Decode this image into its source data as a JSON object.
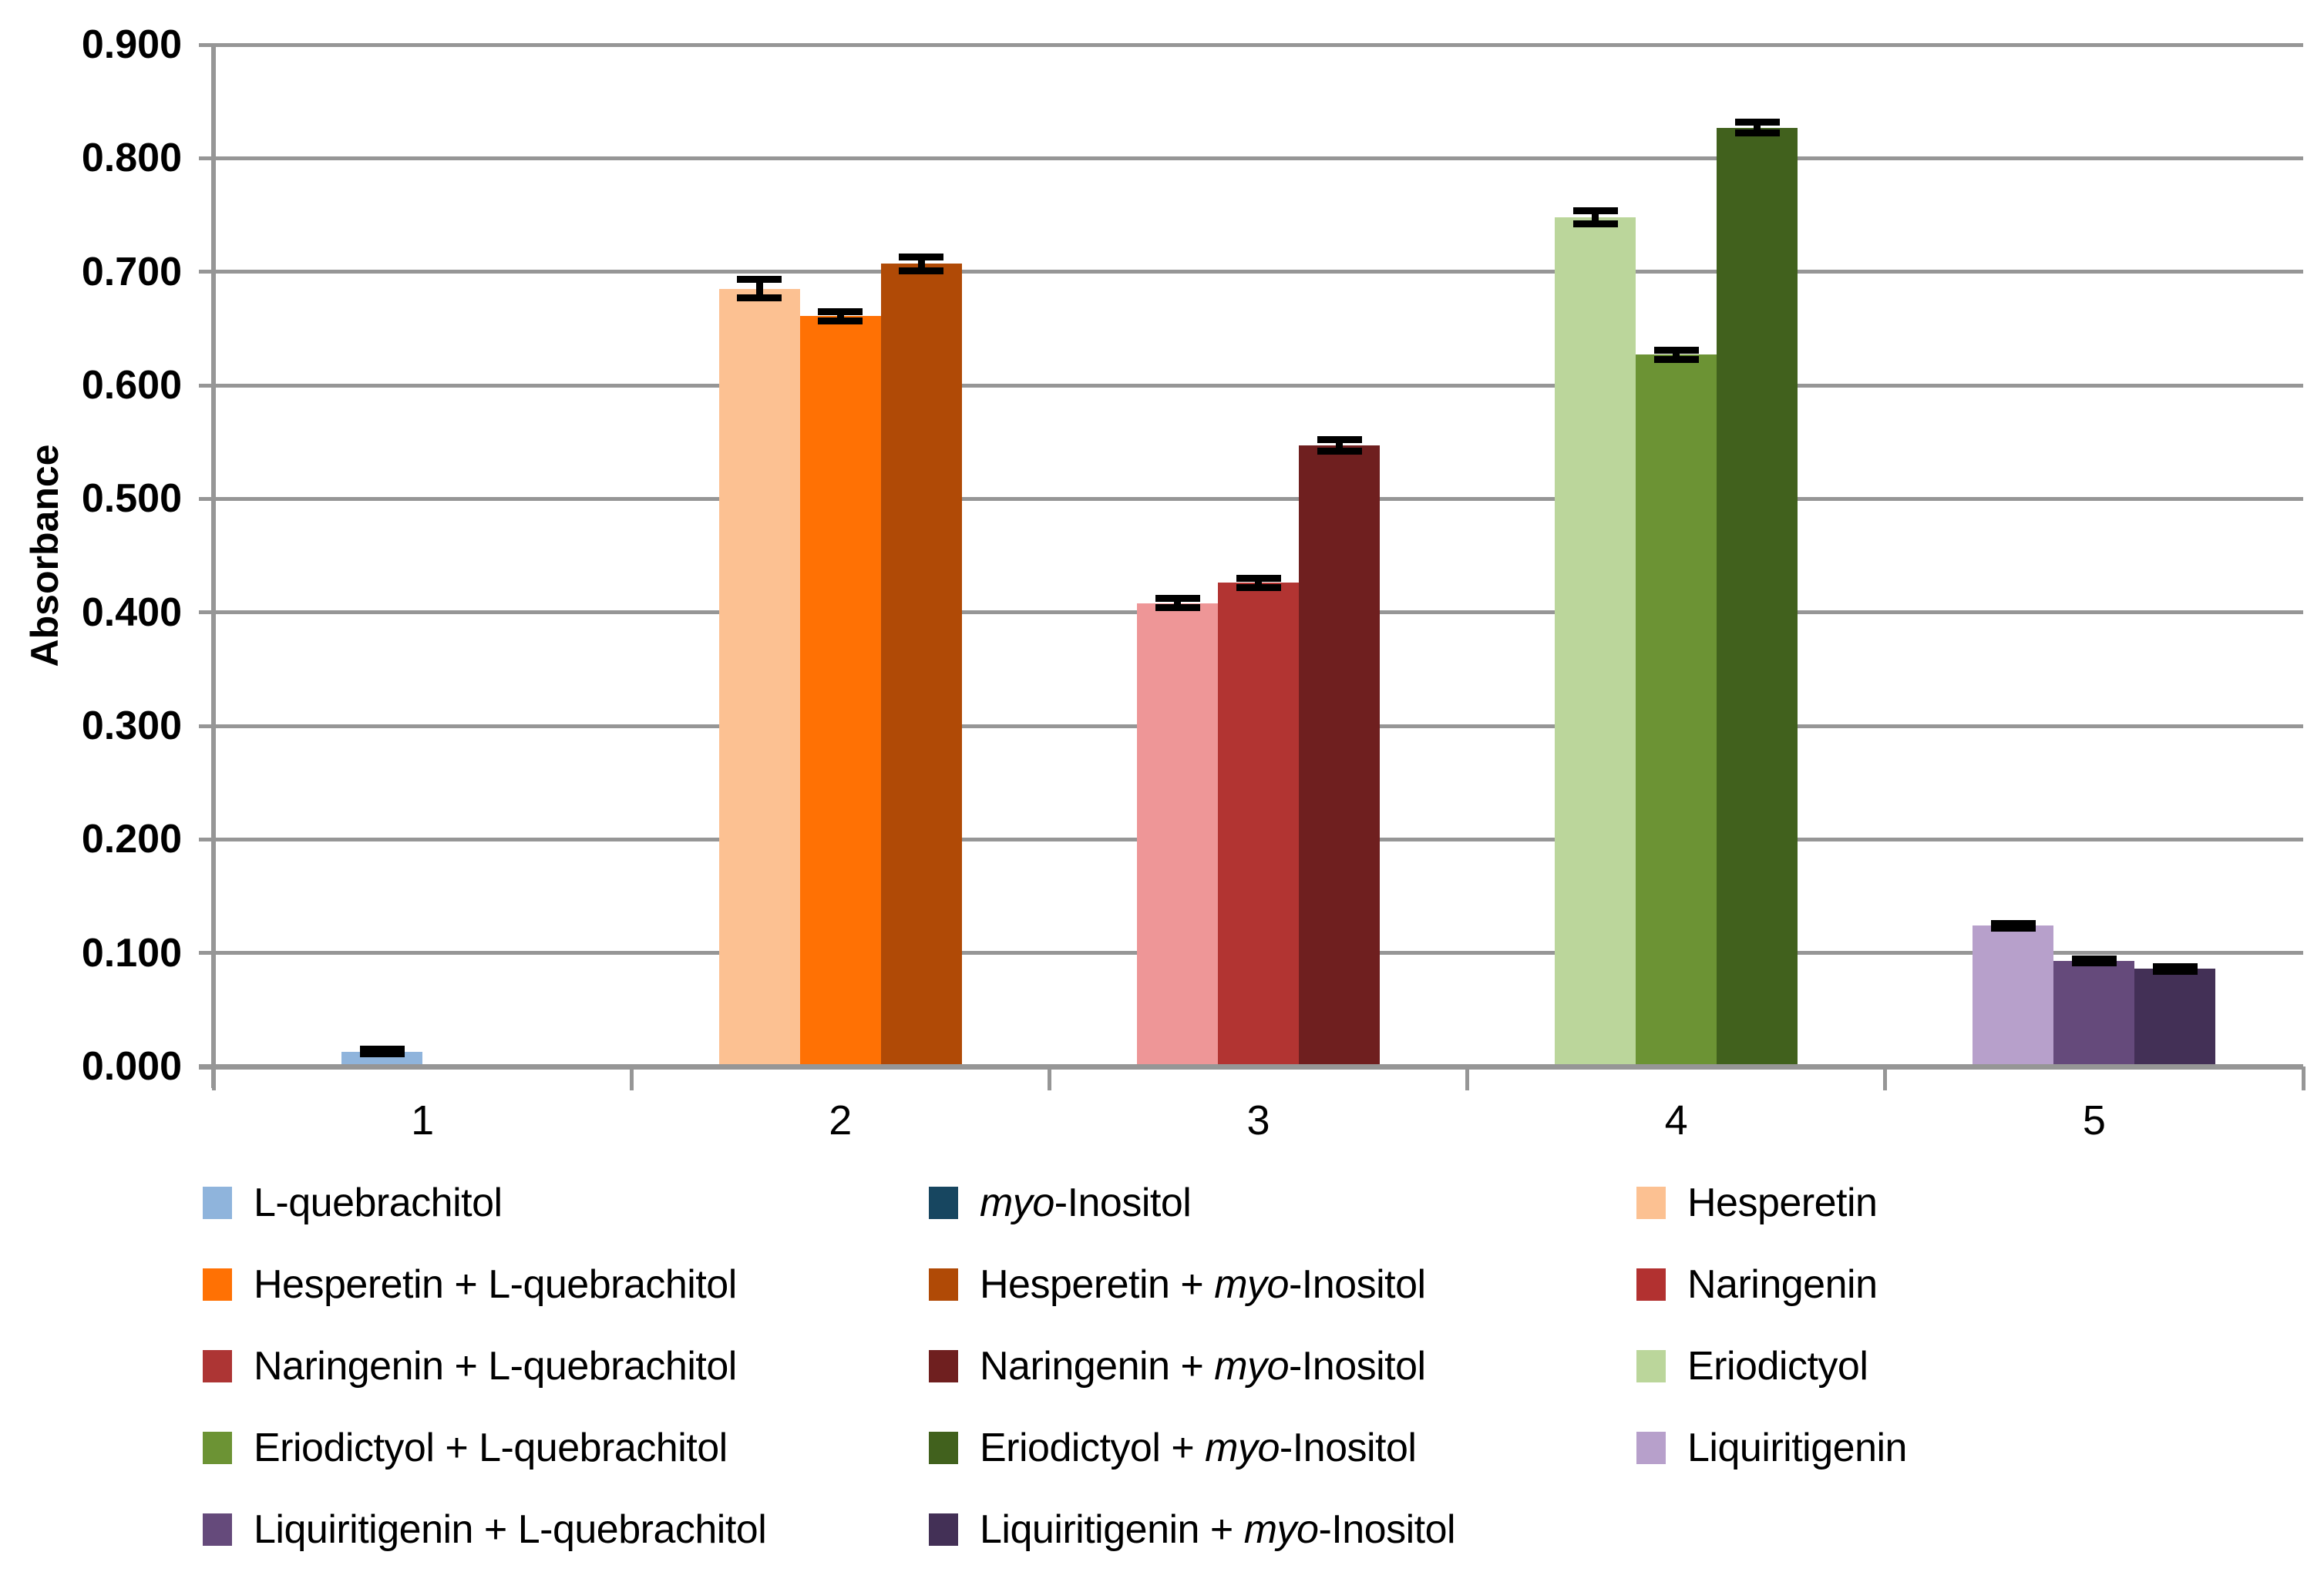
{
  "figure": {
    "background": "#FFFFFF",
    "gridline_color": "#969696",
    "axis_color": "#969696",
    "text_color": "#000000",
    "error_bar_color": "#000000"
  },
  "chart_data": {
    "type": "bar",
    "title": "",
    "xlabel": "",
    "ylabel": "Absorbance",
    "ylim": [
      0,
      0.9
    ],
    "ytick_step": 0.1,
    "y_tick_labels": [
      "0.000",
      "0.100",
      "0.200",
      "0.300",
      "0.400",
      "0.500",
      "0.600",
      "0.700",
      "0.800",
      "0.900"
    ],
    "categories": [
      "1",
      "2",
      "3",
      "4",
      "5"
    ],
    "grid": "horizontal",
    "legend_position": "bottom",
    "legend_columns": 3,
    "series": [
      {
        "name": "L-quebrachitol",
        "category": "1",
        "value": 0.013,
        "error": 0.002,
        "color": "#8FB4DC",
        "legend_color": "#8FB4DC",
        "segments": [
          [
            "L-quebrachitol",
            false
          ]
        ]
      },
      {
        "name": "myo-Inositol",
        "category": "1",
        "value": 0.0,
        "error": 0.0,
        "color": "#174660",
        "legend_color": "#174660",
        "segments": [
          [
            "myo",
            true
          ],
          [
            "-Inositol",
            false
          ]
        ]
      },
      {
        "name": "Hesperetin",
        "category": "2",
        "value": 0.685,
        "error": 0.008,
        "color": "#FCC192",
        "legend_color": "#FCC192",
        "segments": [
          [
            "Hesperetin",
            false
          ]
        ]
      },
      {
        "name": "Hesperetin + L-quebrachitol",
        "category": "2",
        "value": 0.661,
        "error": 0.004,
        "color": "#FF7104",
        "legend_color": "#FF7104",
        "segments": [
          [
            "Hesperetin + L-quebrachitol",
            false
          ]
        ]
      },
      {
        "name": "Hesperetin + myo-Inositol",
        "category": "2",
        "value": 0.707,
        "error": 0.006,
        "color": "#B04A06",
        "legend_color": "#B04A06",
        "segments": [
          [
            "Hesperetin + ",
            false
          ],
          [
            "myo",
            true
          ],
          [
            "-Inositol",
            false
          ]
        ]
      },
      {
        "name": "Naringenin",
        "category": "3",
        "value": 0.408,
        "error": 0.004,
        "color": "#EE9697",
        "legend_color": "#B23130",
        "segments": [
          [
            "Naringenin",
            false
          ]
        ]
      },
      {
        "name": "Naringenin + L-quebrachitol",
        "category": "3",
        "value": 0.426,
        "error": 0.004,
        "color": "#B23432",
        "legend_color": "#AD3534",
        "segments": [
          [
            "Naringenin + L-quebrachitol",
            false
          ]
        ]
      },
      {
        "name": "Naringenin + myo-Inositol",
        "category": "3",
        "value": 0.547,
        "error": 0.005,
        "color": "#6F1F1F",
        "legend_color": "#6F1F1F",
        "segments": [
          [
            "Naringenin + ",
            false
          ],
          [
            "myo",
            true
          ],
          [
            "-Inositol",
            false
          ]
        ]
      },
      {
        "name": "Eriodictyol",
        "category": "4",
        "value": 0.748,
        "error": 0.006,
        "color": "#BBD69B",
        "legend_color": "#BBD69B",
        "segments": [
          [
            "Eriodictyol",
            false
          ]
        ]
      },
      {
        "name": "Eriodictyol + L-quebrachitol",
        "category": "4",
        "value": 0.627,
        "error": 0.004,
        "color": "#6C9334",
        "legend_color": "#6C9334",
        "segments": [
          [
            "Eriodictyol + L-quebrachitol",
            false
          ]
        ]
      },
      {
        "name": "Eriodictyol + myo-Inositol",
        "category": "4",
        "value": 0.827,
        "error": 0.005,
        "color": "#41611D",
        "legend_color": "#41611D",
        "segments": [
          [
            "Eriodictyol + ",
            false
          ],
          [
            "myo",
            true
          ],
          [
            "-Inositol",
            false
          ]
        ]
      },
      {
        "name": "Liquiritigenin",
        "category": "5",
        "value": 0.124,
        "error": 0.002,
        "color": "#B7A0CB",
        "legend_color": "#B7A0CB",
        "segments": [
          [
            "Liquiritigenin",
            false
          ]
        ]
      },
      {
        "name": "Liquiritigenin + L-quebrachitol",
        "category": "5",
        "value": 0.093,
        "error": 0.002,
        "color": "#654A7B",
        "legend_color": "#654A7B",
        "segments": [
          [
            "Liquiritigenin + L-quebrachitol",
            false
          ]
        ]
      },
      {
        "name": "Liquiritigenin + myo-Inositol",
        "category": "5",
        "value": 0.086,
        "error": 0.002,
        "color": "#433056",
        "legend_color": "#433056",
        "segments": [
          [
            "Liquiritigenin + ",
            false
          ],
          [
            "myo",
            true
          ],
          [
            "-Inositol",
            false
          ]
        ]
      }
    ]
  }
}
